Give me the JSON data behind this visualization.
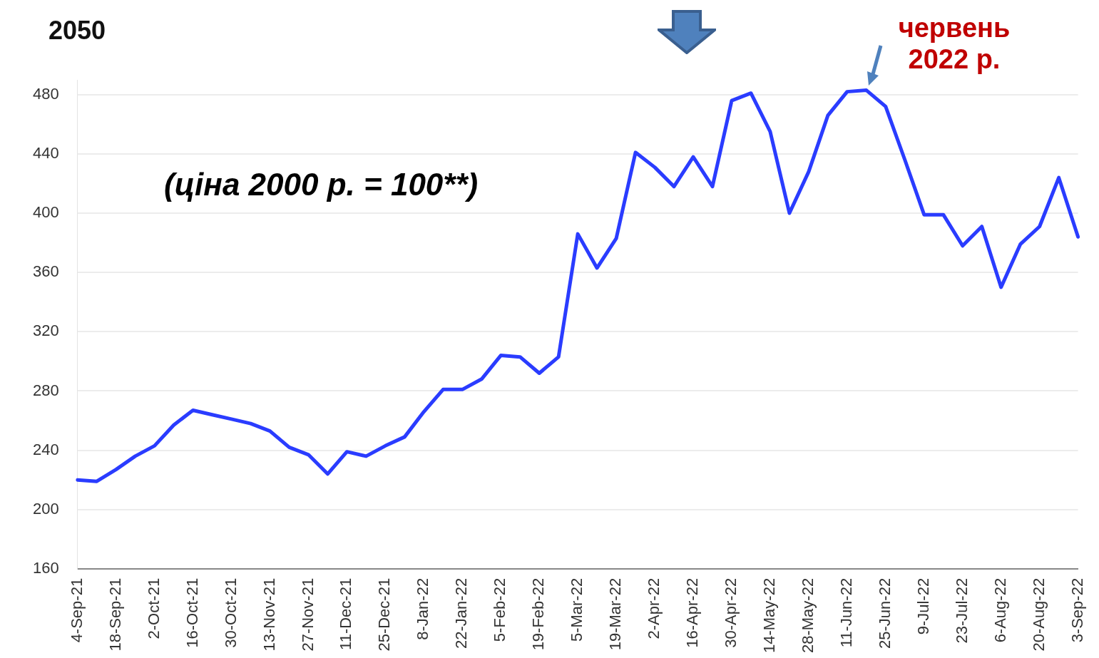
{
  "chart_data": {
    "type": "line",
    "title": "2050",
    "annotations": [
      "(ціна 2000 р. = 100**)",
      "червень 2022 р."
    ],
    "categories": [
      "4-Sep-21",
      null,
      "18-Sep-21",
      null,
      "2-Oct-21",
      null,
      "16-Oct-21",
      null,
      "30-Oct-21",
      null,
      "13-Nov-21",
      null,
      "27-Nov-21",
      null,
      "11-Dec-21",
      null,
      "25-Dec-21",
      null,
      "8-Jan-22",
      null,
      "22-Jan-22",
      null,
      "5-Feb-22",
      null,
      "19-Feb-22",
      null,
      "5-Mar-22",
      null,
      "19-Mar-22",
      null,
      "2-Apr-22",
      null,
      "16-Apr-22",
      null,
      "30-Apr-22",
      null,
      "14-May-22",
      null,
      "28-May-22",
      null,
      "11-Jun-22",
      null,
      "25-Jun-22",
      null,
      "9-Jul-22",
      null,
      "23-Jul-22",
      null,
      "6-Aug-22",
      null,
      "20-Aug-22",
      null,
      "3-Sep-22"
    ],
    "series": [
      {
        "color": "#2a3cff",
        "values": [
          220,
          219,
          227,
          236,
          243,
          257,
          267,
          264,
          261,
          258,
          253,
          242,
          237,
          224,
          239,
          236,
          243,
          249,
          266,
          281,
          281,
          288,
          304,
          303,
          292,
          303,
          386,
          363,
          383,
          441,
          431,
          418,
          438,
          418,
          476,
          481,
          455,
          400,
          428,
          466,
          482,
          483,
          472,
          436,
          399,
          399,
          378,
          391,
          350,
          379,
          391,
          424,
          384
        ]
      }
    ],
    "ylim": [
      160,
      490
    ],
    "yticks": [
      160,
      200,
      240,
      280,
      320,
      360,
      400,
      440,
      480
    ],
    "grid": "y",
    "legend": false,
    "marker": "none",
    "line_style": "solid"
  }
}
